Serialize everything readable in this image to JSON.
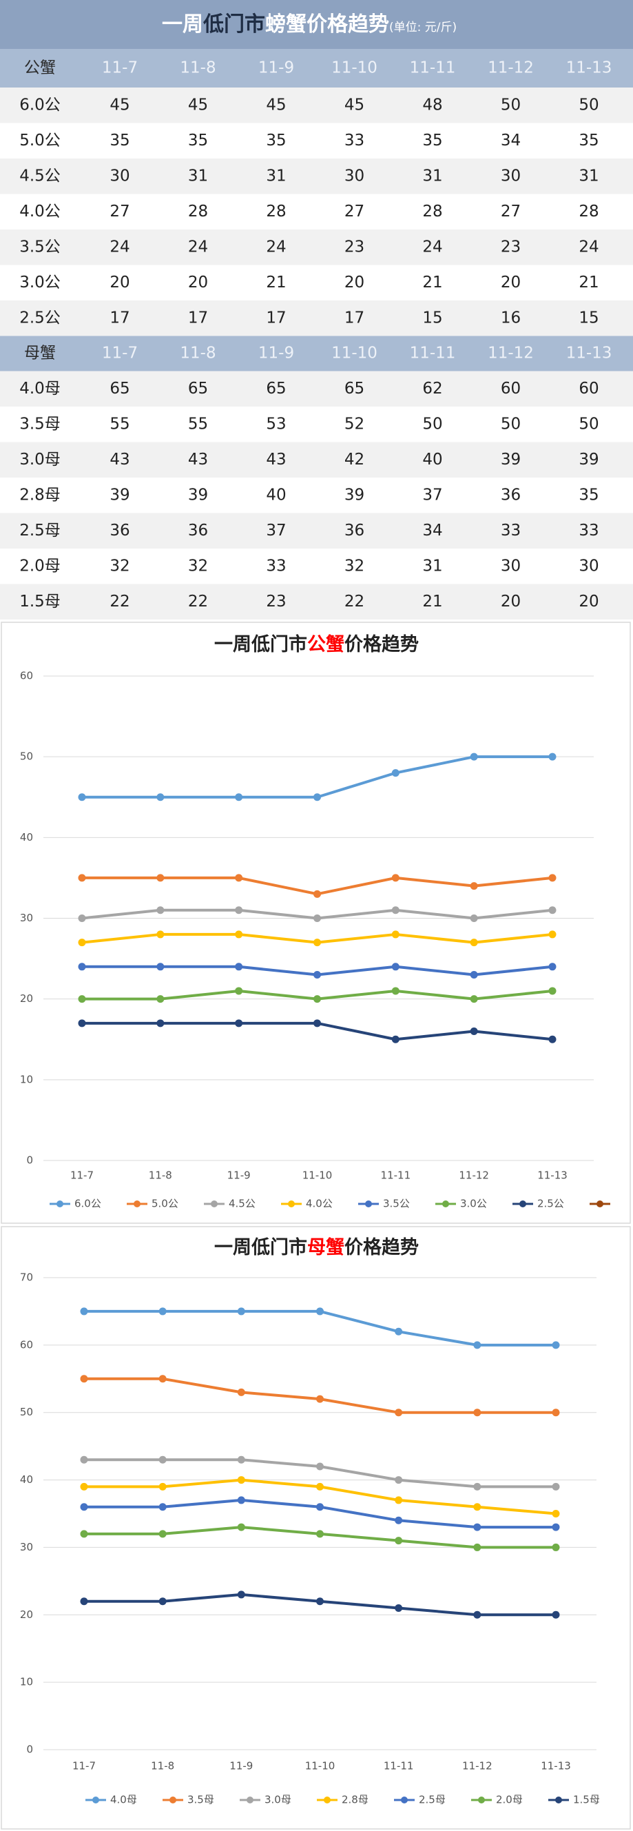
{
  "table": {
    "title": [
      "一周",
      "低门市",
      "螃蟹价格趋势"
    ],
    "title_colors": [
      "#ffffff",
      "#1f2d44",
      "#ffffff"
    ],
    "unit": "(单位: 元/斤)",
    "sections": [
      {
        "header": [
          "公蟹",
          "11-7",
          "11-8",
          "11-9",
          "11-10",
          "11-11",
          "11-12",
          "11-13"
        ],
        "rows": [
          [
            "6.0公",
            45,
            45,
            45,
            45,
            48,
            50,
            50
          ],
          [
            "5.0公",
            35,
            35,
            35,
            33,
            35,
            34,
            35
          ],
          [
            "4.5公",
            30,
            31,
            31,
            30,
            31,
            30,
            31
          ],
          [
            "4.0公",
            27,
            28,
            28,
            27,
            28,
            27,
            28
          ],
          [
            "3.5公",
            24,
            24,
            24,
            23,
            24,
            23,
            24
          ],
          [
            "3.0公",
            20,
            20,
            21,
            20,
            21,
            20,
            21
          ],
          [
            "2.5公",
            17,
            17,
            17,
            17,
            15,
            16,
            15
          ]
        ]
      },
      {
        "header": [
          "母蟹",
          "11-7",
          "11-8",
          "11-9",
          "11-10",
          "11-11",
          "11-12",
          "11-13"
        ],
        "rows": [
          [
            "4.0母",
            65,
            65,
            65,
            65,
            62,
            60,
            60
          ],
          [
            "3.5母",
            55,
            55,
            53,
            52,
            50,
            50,
            50
          ],
          [
            "3.0母",
            43,
            43,
            43,
            42,
            40,
            39,
            39
          ],
          [
            "2.8母",
            39,
            39,
            40,
            39,
            37,
            36,
            35
          ],
          [
            "2.5母",
            36,
            36,
            37,
            36,
            34,
            33,
            33
          ],
          [
            "2.0母",
            32,
            32,
            33,
            32,
            31,
            30,
            30
          ],
          [
            "1.5母",
            22,
            22,
            23,
            22,
            21,
            20,
            20
          ]
        ]
      }
    ]
  },
  "chart_data": [
    {
      "type": "line",
      "title": [
        "一周低门市",
        "公蟹",
        "价格趋势"
      ],
      "title_colors": [
        "#222222",
        "#ff0000",
        "#222222"
      ],
      "categories": [
        "11-7",
        "11-8",
        "11-9",
        "11-10",
        "11-11",
        "11-12",
        "11-13"
      ],
      "ylim": [
        0,
        60
      ],
      "yticks": [
        0,
        10,
        20,
        30,
        40,
        50,
        60
      ],
      "grid": true,
      "series": [
        {
          "name": "6.0公",
          "color": "#5b9bd5",
          "values": [
            45,
            45,
            45,
            45,
            48,
            50,
            50
          ]
        },
        {
          "name": "5.0公",
          "color": "#ed7d31",
          "values": [
            35,
            35,
            35,
            33,
            35,
            34,
            35
          ]
        },
        {
          "name": "4.5公",
          "color": "#a5a5a5",
          "values": [
            30,
            31,
            31,
            30,
            31,
            30,
            31
          ]
        },
        {
          "name": "4.0公",
          "color": "#ffc000",
          "values": [
            27,
            28,
            28,
            27,
            28,
            27,
            28
          ]
        },
        {
          "name": "3.5公",
          "color": "#4472c4",
          "values": [
            24,
            24,
            24,
            23,
            24,
            23,
            24
          ]
        },
        {
          "name": "3.0公",
          "color": "#70ad47",
          "values": [
            20,
            20,
            21,
            20,
            21,
            20,
            21
          ]
        },
        {
          "name": "2.5公",
          "color": "#264478",
          "values": [
            17,
            17,
            17,
            17,
            15,
            16,
            15
          ]
        },
        {
          "name": null,
          "color": "#9e480e",
          "values": [
            null,
            null,
            null,
            null,
            null,
            null,
            null
          ]
        }
      ]
    },
    {
      "type": "line",
      "title": [
        "一周低门市",
        "母蟹",
        "价格趋势"
      ],
      "title_colors": [
        "#222222",
        "#ff0000",
        "#222222"
      ],
      "categories": [
        "11-7",
        "11-8",
        "11-9",
        "11-10",
        "11-11",
        "11-12",
        "11-13"
      ],
      "ylim": [
        0,
        70
      ],
      "yticks": [
        0,
        10,
        20,
        30,
        40,
        50,
        60,
        70
      ],
      "grid": true,
      "series": [
        {
          "name": "4.0母",
          "color": "#5b9bd5",
          "values": [
            65,
            65,
            65,
            65,
            62,
            60,
            60
          ]
        },
        {
          "name": "3.5母",
          "color": "#ed7d31",
          "values": [
            55,
            55,
            53,
            52,
            50,
            50,
            50
          ]
        },
        {
          "name": "3.0母",
          "color": "#a5a5a5",
          "values": [
            43,
            43,
            43,
            42,
            40,
            39,
            39
          ]
        },
        {
          "name": "2.8母",
          "color": "#ffc000",
          "values": [
            39,
            39,
            40,
            39,
            37,
            36,
            35
          ]
        },
        {
          "name": "2.5母",
          "color": "#4472c4",
          "values": [
            36,
            36,
            37,
            36,
            34,
            33,
            33
          ]
        },
        {
          "name": "2.0母",
          "color": "#70ad47",
          "values": [
            32,
            32,
            33,
            32,
            31,
            30,
            30
          ]
        },
        {
          "name": "1.5母",
          "color": "#264478",
          "values": [
            22,
            22,
            23,
            22,
            21,
            20,
            20
          ]
        }
      ]
    }
  ]
}
